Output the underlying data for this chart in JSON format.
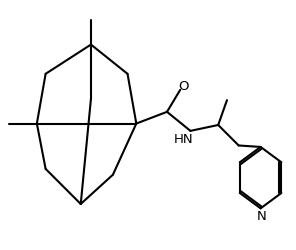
{
  "background_color": "#ffffff",
  "line_color": "#000000",
  "line_width": 1.5,
  "figsize": [
    2.96,
    2.5
  ],
  "dpi": 100,
  "xlim": [
    0,
    10
  ],
  "ylim": [
    0,
    8.5
  ]
}
